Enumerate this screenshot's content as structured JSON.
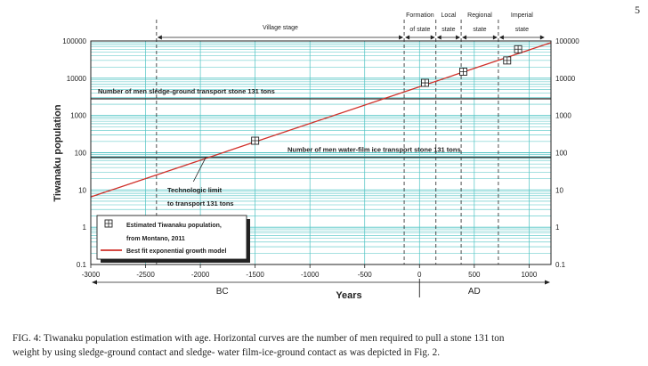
{
  "page_number": "5",
  "caption": {
    "line1": "FIG. 4: Tiwanaku population estimation with age. Horizontal curves are the number of men required to pull a stone 131 ton",
    "line2": "weight by using sledge-ground contact and sledge- water film-ice-ground contact as was depicted in Fig. 2."
  },
  "chart_data": {
    "type": "scatter",
    "xlabel": "Years",
    "ylabel": "Tiwanaku population",
    "xlim": [
      -3000,
      1200
    ],
    "ylim": [
      0.1,
      100000
    ],
    "yscale": "log",
    "grid": true,
    "x_ticks": [
      "-3000",
      "-2500",
      "-2000",
      "-1500",
      "-1000",
      "-500",
      "0",
      "500",
      "1000"
    ],
    "y_ticks": [
      "0.1",
      "1",
      "10",
      "100",
      "1000",
      "10000",
      "100000"
    ],
    "era_labels": {
      "bc": "BC",
      "ad": "AD"
    },
    "stages": [
      {
        "label": "Village    stage",
        "from": -2400,
        "to": -140
      },
      {
        "label_lines": [
          "Formation",
          "of state"
        ],
        "from": -140,
        "to": 150
      },
      {
        "label_lines": [
          "Local",
          "state"
        ],
        "from": 150,
        "to": 380
      },
      {
        "label_lines": [
          "Regional",
          "state"
        ],
        "from": 380,
        "to": 720
      },
      {
        "label_lines": [
          "Imperial",
          "state"
        ],
        "from": 720,
        "to": 1150
      }
    ],
    "stage_boundaries": [
      -2400,
      -140,
      150,
      380,
      720
    ],
    "series": [
      {
        "name": "Estimated  Tiwanaku population,",
        "name_line2": "from Montano, 2011",
        "marker": "boxed-plus",
        "points": [
          [
            -1500,
            210
          ],
          [
            50,
            7500
          ],
          [
            400,
            15000
          ],
          [
            800,
            30000
          ],
          [
            900,
            60000
          ]
        ]
      },
      {
        "name": "Best fit exponential growth model",
        "color": "#d0302a",
        "line": [
          [
            -3000,
            6.5
          ],
          [
            1200,
            90000
          ]
        ]
      }
    ],
    "reference_lines": [
      {
        "label": "Number of men  sledge-ground transport stone 131 tons",
        "y": 2800
      },
      {
        "label": "Number of men  water-film ice transport stone 131 tons",
        "y": 75
      }
    ],
    "annotation": {
      "lines": [
        "Technologic  limit",
        "to transport 131 tons"
      ],
      "x": -1950,
      "y": 75
    },
    "colors": {
      "grid": "#4fc3c3",
      "fit": "#d0302a",
      "ref_line": "#3a3a3a"
    }
  }
}
